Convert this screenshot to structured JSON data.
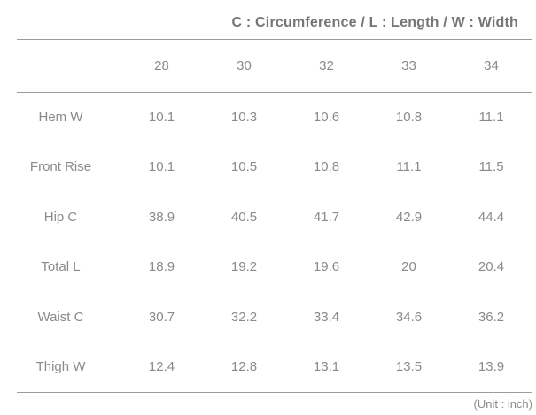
{
  "chart_data": {
    "type": "table",
    "title": "C : Circumference / L : Length / W : Width",
    "unit_note": "(Unit : inch)",
    "columns": [
      "28",
      "30",
      "32",
      "33",
      "34"
    ],
    "rows": [
      {
        "label": "Hem W",
        "values": [
          "10.1",
          "10.3",
          "10.6",
          "10.8",
          "11.1"
        ]
      },
      {
        "label": "Front Rise",
        "values": [
          "10.1",
          "10.5",
          "10.8",
          "11.1",
          "11.5"
        ]
      },
      {
        "label": "Hip C",
        "values": [
          "38.9",
          "40.5",
          "41.7",
          "42.9",
          "44.4"
        ]
      },
      {
        "label": "Total L",
        "values": [
          "18.9",
          "19.2",
          "19.6",
          "20",
          "20.4"
        ]
      },
      {
        "label": "Waist C",
        "values": [
          "30.7",
          "32.2",
          "33.4",
          "34.6",
          "36.2"
        ]
      },
      {
        "label": "Thigh W",
        "values": [
          "12.4",
          "12.8",
          "13.1",
          "13.5",
          "13.9"
        ]
      }
    ],
    "layout": {
      "header_row": "size values in inches (waist sizes)",
      "grid": "horizontal rules under title, under header row, and below last row only"
    }
  },
  "colors": {
    "background": "#ffffff",
    "title_text": "#757575",
    "body_text": "#8a8a8a",
    "rule_line": "#9c9c9c"
  }
}
